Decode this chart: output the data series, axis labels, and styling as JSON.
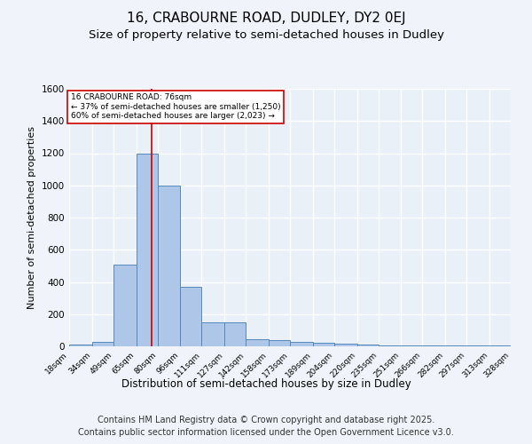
{
  "title": "16, CRABOURNE ROAD, DUDLEY, DY2 0EJ",
  "subtitle": "Size of property relative to semi-detached houses in Dudley",
  "xlabel": "Distribution of semi-detached houses by size in Dudley",
  "ylabel": "Number of semi-detached properties",
  "bin_edges": [
    18,
    34,
    49,
    65,
    80,
    96,
    111,
    127,
    142,
    158,
    173,
    189,
    204,
    220,
    235,
    251,
    266,
    282,
    297,
    313,
    328
  ],
  "bar_heights": [
    10,
    28,
    510,
    1200,
    1000,
    370,
    148,
    148,
    45,
    38,
    27,
    20,
    15,
    13,
    8,
    6,
    5,
    4,
    3,
    3
  ],
  "bar_color": "#aec6e8",
  "bar_edge_color": "#5588bb",
  "tick_labels": [
    "18sqm",
    "34sqm",
    "49sqm",
    "65sqm",
    "80sqm",
    "96sqm",
    "111sqm",
    "127sqm",
    "142sqm",
    "158sqm",
    "173sqm",
    "189sqm",
    "204sqm",
    "220sqm",
    "235sqm",
    "251sqm",
    "266sqm",
    "282sqm",
    "297sqm",
    "313sqm",
    "328sqm"
  ],
  "property_size": 76,
  "red_line_color": "#cc0000",
  "annotation_text": "16 CRABOURNE ROAD: 76sqm\n← 37% of semi-detached houses are smaller (1,250)\n60% of semi-detached houses are larger (2,023) →",
  "annotation_box_color": "#cc0000",
  "ylim": [
    0,
    1600
  ],
  "yticks": [
    0,
    200,
    400,
    600,
    800,
    1000,
    1200,
    1400,
    1600
  ],
  "bg_color": "#eaf0f8",
  "grid_color": "#ffffff",
  "fig_bg_color": "#f0f4fa",
  "footer_line1": "Contains HM Land Registry data © Crown copyright and database right 2025.",
  "footer_line2": "Contains public sector information licensed under the Open Government Licence v3.0.",
  "title_fontsize": 11,
  "subtitle_fontsize": 9.5,
  "footer_fontsize": 7
}
